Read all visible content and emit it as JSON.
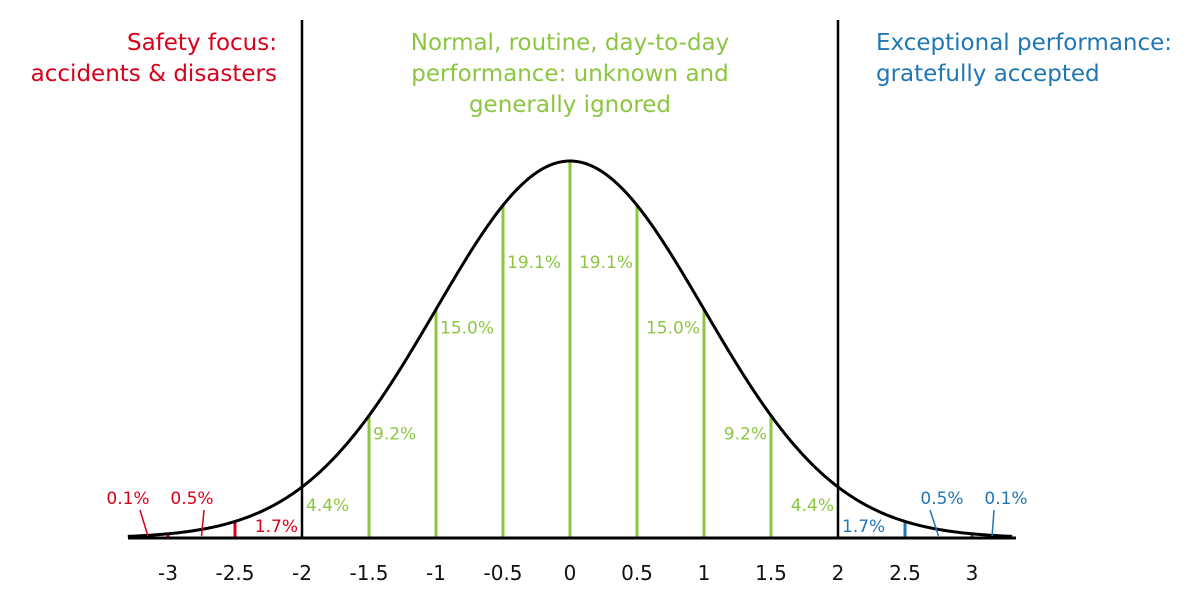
{
  "colors": {
    "safety": "#d9001b",
    "normal": "#8cc63f",
    "exceptional": "#1f77b4",
    "axis": "#000000"
  },
  "zones": [
    {
      "lines": [
        "Safety focus:",
        "accidents & disasters"
      ],
      "color": "safety",
      "anchor": "end"
    },
    {
      "lines": [
        "Normal, routine, day-to-day",
        "performance: unknown and",
        "generally ignored"
      ],
      "color": "normal",
      "anchor": "middle"
    },
    {
      "lines": [
        "Exceptional performance:",
        "gratefully accepted"
      ],
      "color": "exceptional",
      "anchor": "start"
    }
  ],
  "chart_data": {
    "type": "area",
    "curve": "normal distribution",
    "x_ticks": [
      -3,
      -2.5,
      -2,
      -1.5,
      -1,
      -0.5,
      0,
      0.5,
      1,
      1.5,
      2,
      2.5,
      3
    ],
    "tick_labels": [
      "-3",
      "-2.5",
      "-2",
      "-1.5",
      "-1",
      "-0.5",
      "0",
      "0.5",
      "1",
      "1.5",
      "2",
      "2.5",
      "3"
    ],
    "xlim": [
      -3.3,
      3.3
    ],
    "boundaries": [
      -2,
      2
    ],
    "segments": [
      {
        "from": -3.3,
        "to": -3,
        "label": "0.1%",
        "zone": "safety"
      },
      {
        "from": -3,
        "to": -2.5,
        "label": "0.5%",
        "zone": "safety"
      },
      {
        "from": -2.5,
        "to": -2,
        "label": "1.7%",
        "zone": "safety"
      },
      {
        "from": -2,
        "to": -1.5,
        "label": "4.4%",
        "zone": "normal"
      },
      {
        "from": -1.5,
        "to": -1,
        "label": "9.2%",
        "zone": "normal"
      },
      {
        "from": -1,
        "to": -0.5,
        "label": "15.0%",
        "zone": "normal"
      },
      {
        "from": -0.5,
        "to": 0,
        "label": "19.1%",
        "zone": "normal"
      },
      {
        "from": 0,
        "to": 0.5,
        "label": "19.1%",
        "zone": "normal"
      },
      {
        "from": 0.5,
        "to": 1,
        "label": "15.0%",
        "zone": "normal"
      },
      {
        "from": 1,
        "to": 1.5,
        "label": "9.2%",
        "zone": "normal"
      },
      {
        "from": 1.5,
        "to": 2,
        "label": "4.4%",
        "zone": "normal"
      },
      {
        "from": 2,
        "to": 2.5,
        "label": "1.7%",
        "zone": "exceptional"
      },
      {
        "from": 2.5,
        "to": 3,
        "label": "0.5%",
        "zone": "exceptional"
      },
      {
        "from": 3,
        "to": 3.3,
        "label": "0.1%",
        "zone": "exceptional"
      }
    ]
  }
}
